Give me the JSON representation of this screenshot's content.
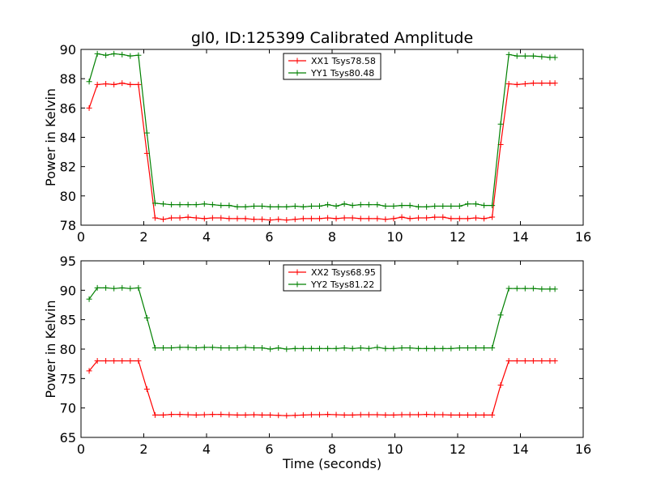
{
  "chart_data": [
    {
      "type": "line",
      "title": "gl0, ID:125399 Calibrated Amplitude",
      "xlabel": "",
      "ylabel": "Power in Kelvin",
      "xlim": [
        0,
        16
      ],
      "ylim": [
        78,
        90
      ],
      "xticks": [
        "0",
        "2",
        "4",
        "6",
        "8",
        "10",
        "12",
        "14",
        "16"
      ],
      "yticks": [
        "78",
        "80",
        "82",
        "84",
        "86",
        "88",
        "90"
      ],
      "legend_position": "top-center",
      "x": [
        0.26,
        0.52,
        0.79,
        1.05,
        1.31,
        1.57,
        1.83,
        2.1,
        2.36,
        2.62,
        2.88,
        3.15,
        3.41,
        3.67,
        3.93,
        4.19,
        4.46,
        4.72,
        4.98,
        5.24,
        5.51,
        5.77,
        6.03,
        6.29,
        6.55,
        6.82,
        7.08,
        7.34,
        7.6,
        7.86,
        8.13,
        8.39,
        8.65,
        8.91,
        9.17,
        9.44,
        9.7,
        9.96,
        10.22,
        10.48,
        10.75,
        11.01,
        11.27,
        11.53,
        11.79,
        12.06,
        12.32,
        12.58,
        12.84,
        13.1,
        13.37,
        13.63,
        13.89,
        14.15,
        14.41,
        14.68,
        14.94,
        15.1
      ],
      "series": [
        {
          "name": "XX1 Tsys78.58",
          "color": "#ff0000",
          "values": [
            86.0,
            87.6,
            87.65,
            87.6,
            87.7,
            87.6,
            87.6,
            82.9,
            78.5,
            78.4,
            78.5,
            78.5,
            78.55,
            78.5,
            78.45,
            78.5,
            78.5,
            78.45,
            78.45,
            78.45,
            78.4,
            78.4,
            78.35,
            78.4,
            78.35,
            78.4,
            78.45,
            78.45,
            78.45,
            78.5,
            78.45,
            78.5,
            78.5,
            78.45,
            78.45,
            78.45,
            78.4,
            78.45,
            78.55,
            78.45,
            78.5,
            78.5,
            78.55,
            78.55,
            78.45,
            78.45,
            78.45,
            78.5,
            78.45,
            78.55,
            83.5,
            87.65,
            87.6,
            87.65,
            87.7,
            87.7,
            87.7,
            87.7
          ]
        },
        {
          "name": "YY1 Tsys80.48",
          "color": "#008000",
          "values": [
            87.8,
            89.7,
            89.6,
            89.7,
            89.65,
            89.55,
            89.6,
            84.3,
            79.5,
            79.45,
            79.4,
            79.4,
            79.4,
            79.4,
            79.45,
            79.4,
            79.35,
            79.35,
            79.25,
            79.25,
            79.3,
            79.3,
            79.25,
            79.25,
            79.25,
            79.3,
            79.25,
            79.3,
            79.3,
            79.4,
            79.3,
            79.45,
            79.35,
            79.4,
            79.4,
            79.4,
            79.3,
            79.3,
            79.35,
            79.35,
            79.25,
            79.25,
            79.3,
            79.3,
            79.3,
            79.3,
            79.45,
            79.45,
            79.35,
            79.35,
            84.9,
            89.65,
            89.55,
            89.55,
            89.55,
            89.5,
            89.45,
            89.45
          ]
        }
      ]
    },
    {
      "type": "line",
      "title": "",
      "xlabel": "Time (seconds)",
      "ylabel": "Power in Kelvin",
      "xlim": [
        0,
        16
      ],
      "ylim": [
        65,
        95
      ],
      "xticks": [
        "0",
        "2",
        "4",
        "6",
        "8",
        "10",
        "12",
        "14",
        "16"
      ],
      "yticks": [
        "65",
        "70",
        "75",
        "80",
        "85",
        "90",
        "95"
      ],
      "legend_position": "top-center",
      "x": [
        0.26,
        0.52,
        0.79,
        1.05,
        1.31,
        1.57,
        1.83,
        2.1,
        2.36,
        2.62,
        2.88,
        3.15,
        3.41,
        3.67,
        3.93,
        4.19,
        4.46,
        4.72,
        4.98,
        5.24,
        5.51,
        5.77,
        6.03,
        6.29,
        6.55,
        6.82,
        7.08,
        7.34,
        7.6,
        7.86,
        8.13,
        8.39,
        8.65,
        8.91,
        9.17,
        9.44,
        9.7,
        9.96,
        10.22,
        10.48,
        10.75,
        11.01,
        11.27,
        11.53,
        11.79,
        12.06,
        12.32,
        12.58,
        12.84,
        13.1,
        13.37,
        13.63,
        13.89,
        14.15,
        14.41,
        14.68,
        14.94,
        15.1
      ],
      "series": [
        {
          "name": "XX2 Tsys68.95",
          "color": "#ff0000",
          "values": [
            76.3,
            78.0,
            78.0,
            78.0,
            78.0,
            78.0,
            78.0,
            73.2,
            68.8,
            68.8,
            68.9,
            68.9,
            68.85,
            68.8,
            68.85,
            68.9,
            68.9,
            68.85,
            68.8,
            68.8,
            68.85,
            68.8,
            68.8,
            68.75,
            68.7,
            68.75,
            68.8,
            68.85,
            68.85,
            68.9,
            68.85,
            68.8,
            68.8,
            68.85,
            68.85,
            68.85,
            68.8,
            68.8,
            68.85,
            68.85,
            68.85,
            68.9,
            68.85,
            68.85,
            68.8,
            68.8,
            68.8,
            68.8,
            68.8,
            68.8,
            73.9,
            78.0,
            78.0,
            78.0,
            78.0,
            78.0,
            78.0,
            78.0
          ]
        },
        {
          "name": "YY2 Tsys81.22",
          "color": "#008000",
          "values": [
            88.5,
            90.4,
            90.4,
            90.3,
            90.4,
            90.3,
            90.4,
            85.3,
            80.2,
            80.2,
            80.2,
            80.3,
            80.3,
            80.2,
            80.3,
            80.3,
            80.2,
            80.2,
            80.2,
            80.3,
            80.2,
            80.2,
            80.0,
            80.2,
            80.0,
            80.1,
            80.1,
            80.1,
            80.1,
            80.1,
            80.1,
            80.2,
            80.1,
            80.2,
            80.1,
            80.3,
            80.1,
            80.1,
            80.2,
            80.2,
            80.1,
            80.1,
            80.1,
            80.1,
            80.1,
            80.2,
            80.2,
            80.2,
            80.2,
            80.2,
            85.8,
            90.3,
            90.3,
            90.3,
            90.3,
            90.2,
            90.2,
            90.2
          ]
        }
      ]
    }
  ]
}
